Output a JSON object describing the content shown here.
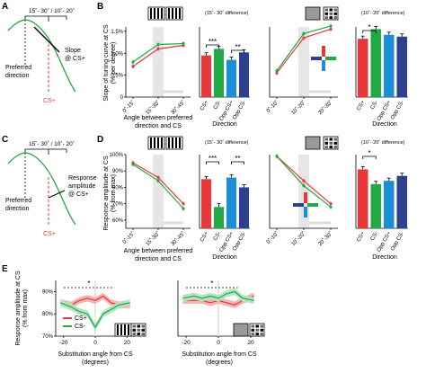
{
  "panel_labels": {
    "A": "A",
    "B": "B",
    "C": "C",
    "D": "D",
    "E": "E"
  },
  "panelA": {
    "header": "15˚- 30˚ / 10˚- 20˚",
    "pref": [
      "Preferred",
      "direction"
    ],
    "slope": [
      "Slope",
      "@ CS+"
    ],
    "csplus": "CS+"
  },
  "panelC": {
    "header": "15˚- 30˚ / 10˚- 20˚",
    "pref": [
      "Preferred",
      "direction"
    ],
    "resp": [
      "Response",
      "amplitude",
      "@ CS+"
    ],
    "csplus": "CS+"
  },
  "panelB": {
    "ylabel": [
      "Slope of tuning curve at CS",
      "(% per degree)"
    ],
    "xlabel": [
      "Angle between preferred",
      "direction and CS"
    ],
    "dirlabel": "Direction",
    "note_left": "(15˚- 30˚ difference)",
    "note_right": "(10˚- 20˚ difference)",
    "yticks": [
      "0",
      "0.5%",
      "1.0%",
      "1.5%"
    ],
    "xticks_left": [
      "0˚-15˚",
      "15˚-30˚",
      "30˚-45˚"
    ],
    "xticks_right": [
      "0˚-10˚",
      "10˚-20˚",
      "20˚-30˚"
    ],
    "barticks": [
      "CS+",
      "CS-",
      "Opp CS+",
      "Opp CS-"
    ],
    "stars_left": [
      "***",
      "**"
    ],
    "stars_right": [
      "*"
    ],
    "inset": {
      "plus": "CS+",
      "minus": "CS-",
      "opp": "Opp CS+",
      "oppminus": "Opp CS-"
    }
  },
  "panelD": {
    "ylabel": [
      "Response amplitude at CS",
      "(% from max)"
    ],
    "xlabel": [
      "Angle between preferred",
      "direction and CS"
    ],
    "dirlabel": "Direction",
    "note_left": "(15˚- 30˚ difference)",
    "note_right": "(10˚- 20˚ difference)",
    "yticks": [
      "60%",
      "70%",
      "80%",
      "90%",
      "100%"
    ],
    "xticks_left": [
      "0˚-15˚",
      "15˚-30˚",
      "30˚-45˚"
    ],
    "xticks_right": [
      "0˚-10˚",
      "10˚-20˚",
      "20˚-30˚"
    ],
    "barticks": [
      "CS+",
      "CS-",
      "Opp CS+",
      "Opp CS-"
    ],
    "stars_left": [
      "***",
      "**"
    ],
    "stars_right": [
      "*"
    ],
    "inset": {
      "plus": "CS+",
      "minus": "CS-",
      "opp": "Opp CS+",
      "oppminus": "Opp CS-"
    }
  },
  "panelE": {
    "ylabel": [
      "Response amplitude at CS",
      "(% from max)"
    ],
    "xlabel": [
      "Substitution angle from CS",
      "(degrees)"
    ],
    "yticks": [
      "70%",
      "80%",
      "90%"
    ],
    "xticks": [
      "-20",
      "0",
      "20"
    ],
    "legend": [
      "CS+",
      "CS-"
    ],
    "star": "*"
  },
  "colors": {
    "red": "#e8393a",
    "green": "#22a844",
    "blue": "#1b8fd6",
    "navy": "#2f3f8f",
    "shade": "#e6e6e6"
  },
  "chart_data": [
    {
      "type": "line",
      "panel": "B-left",
      "x": [
        "0˚-15˚",
        "15˚-30˚",
        "30˚-45˚"
      ],
      "series": [
        {
          "name": "CS+",
          "values": [
            0.7,
            1.1,
            1.18
          ]
        },
        {
          "name": "CS-",
          "values": [
            0.8,
            1.2,
            1.22
          ]
        }
      ],
      "ylim": [
        0,
        1.6
      ]
    },
    {
      "type": "bar",
      "panel": "B-left-bars",
      "categories": [
        "CS+",
        "CS-",
        "Opp CS+",
        "Opp CS-"
      ],
      "values": [
        0.95,
        1.1,
        0.85,
        1.02
      ],
      "ylim": [
        0,
        1.6
      ]
    },
    {
      "type": "line",
      "panel": "B-right",
      "x": [
        "0˚-10˚",
        "10˚-20˚",
        "20˚-30˚"
      ],
      "series": [
        {
          "name": "CS+",
          "values": [
            0.55,
            1.35,
            1.55
          ]
        },
        {
          "name": "CS-",
          "values": [
            0.6,
            1.45,
            1.62
          ]
        }
      ],
      "ylim": [
        0,
        1.6
      ]
    },
    {
      "type": "bar",
      "panel": "B-right-bars",
      "categories": [
        "CS+",
        "CS-",
        "Opp CS+",
        "Opp CS-"
      ],
      "values": [
        1.33,
        1.55,
        1.42,
        1.38
      ],
      "ylim": [
        0,
        1.6
      ]
    },
    {
      "type": "line",
      "panel": "D-left",
      "x": [
        "0˚-15˚",
        "15˚-30˚",
        "30˚-45˚"
      ],
      "series": [
        {
          "name": "CS+",
          "values": [
            95,
            86,
            70
          ]
        },
        {
          "name": "CS-",
          "values": [
            94,
            84,
            67
          ]
        }
      ],
      "ylim": [
        55,
        100
      ]
    },
    {
      "type": "bar",
      "panel": "D-left-bars",
      "categories": [
        "CS+",
        "CS-",
        "Opp CS+",
        "Opp CS-"
      ],
      "values": [
        85,
        68,
        86,
        80
      ],
      "ylim": [
        55,
        100
      ]
    },
    {
      "type": "line",
      "panel": "D-right",
      "x": [
        "0˚-10˚",
        "10˚-20˚",
        "20˚-30˚"
      ],
      "series": [
        {
          "name": "CS+",
          "values": [
            99,
            84,
            70
          ]
        },
        {
          "name": "CS-",
          "values": [
            99,
            81,
            68
          ]
        }
      ],
      "ylim": [
        55,
        100
      ]
    },
    {
      "type": "bar",
      "panel": "D-right-bars",
      "categories": [
        "CS+",
        "CS-",
        "Opp CS+",
        "Opp CS-"
      ],
      "values": [
        91,
        82,
        84,
        87
      ],
      "ylim": [
        55,
        100
      ]
    },
    {
      "type": "line",
      "panel": "E-left",
      "x": [
        -22,
        -15,
        -10,
        -5,
        0,
        5,
        10,
        15,
        22
      ],
      "series": [
        {
          "name": "CS+",
          "values": [
            85,
            84,
            86,
            87,
            86,
            88,
            85,
            84,
            84
          ]
        },
        {
          "name": "CS-",
          "values": [
            85,
            83,
            81,
            80,
            74,
            80,
            82,
            84,
            85
          ]
        }
      ],
      "ylim": [
        70,
        95
      ]
    },
    {
      "type": "line",
      "panel": "E-right",
      "x": [
        -22,
        -15,
        -10,
        -5,
        0,
        5,
        10,
        15,
        22
      ],
      "series": [
        {
          "name": "CS+",
          "values": [
            86,
            86,
            86,
            85,
            86,
            85,
            84,
            86,
            88
          ]
        },
        {
          "name": "CS-",
          "values": [
            87,
            88,
            87,
            88,
            87,
            89,
            90,
            87,
            86
          ]
        }
      ],
      "ylim": [
        70,
        95
      ]
    }
  ]
}
